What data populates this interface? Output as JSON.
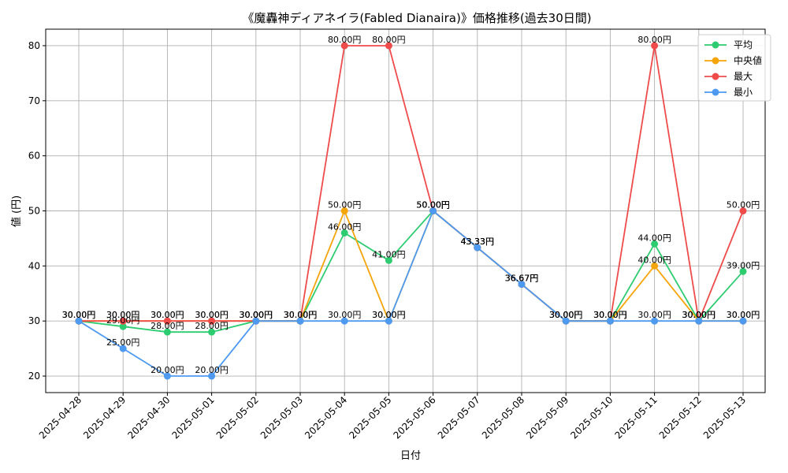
{
  "chart_data": {
    "type": "line",
    "title": "《魔轟神ディアネイラ(Fabled Dianaira)》価格推移(過去30日間)",
    "xlabel": "日付",
    "ylabel": "値 (円)",
    "ylim": [
      17,
      83
    ],
    "yticks": [
      20,
      30,
      40,
      50,
      60,
      70,
      80
    ],
    "grid": true,
    "legend_position": "top-right",
    "unit_suffix": "円",
    "categories": [
      "2025-04-28",
      "2025-04-29",
      "2025-04-30",
      "2025-05-01",
      "2025-05-02",
      "2025-05-03",
      "2025-05-04",
      "2025-05-05",
      "2025-05-06",
      "2025-05-07",
      "2025-05-08",
      "2025-05-09",
      "2025-05-10",
      "2025-05-11",
      "2025-05-12",
      "2025-05-13"
    ],
    "series": [
      {
        "name": "平均",
        "color": "#2ecc71",
        "values": [
          30,
          29,
          28,
          28,
          30,
          30,
          46,
          41,
          50,
          43.33,
          36.67,
          30,
          30,
          44,
          30,
          39
        ]
      },
      {
        "name": "中央値",
        "color": "#f5a50a",
        "values": [
          30,
          30,
          30,
          30,
          30,
          30,
          50,
          30,
          50,
          43.33,
          36.67,
          30,
          30,
          40,
          30,
          30
        ]
      },
      {
        "name": "最大",
        "color": "#ef4b4b",
        "values": [
          30,
          30,
          30,
          30,
          30,
          30,
          80,
          80,
          50,
          43.33,
          36.67,
          30,
          30,
          80,
          30,
          50
        ]
      },
      {
        "name": "最小",
        "color": "#4d9af0",
        "values": [
          30,
          25,
          20,
          20,
          30,
          30,
          30,
          30,
          50,
          43.33,
          36.67,
          30,
          30,
          30,
          30,
          30
        ]
      }
    ]
  }
}
